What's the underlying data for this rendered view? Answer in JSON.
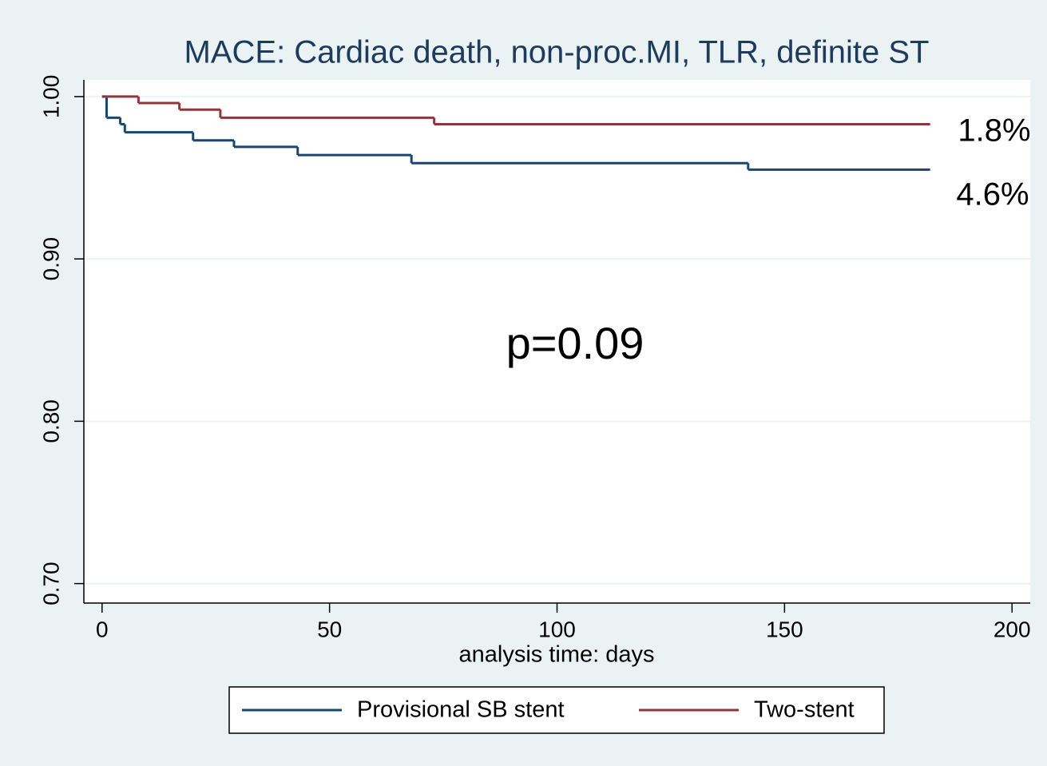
{
  "chart_data": {
    "type": "step",
    "title": "MACE: Cardiac death, non-proc.MI, TLR, definite ST",
    "xlabel": "analysis time: days",
    "xlim": [
      -4,
      204
    ],
    "xticks": [
      0,
      50,
      100,
      150,
      200
    ],
    "ylim": [
      0.688,
      1.0103
    ],
    "yticks": [
      {
        "value": 0.7,
        "label": "0.70"
      },
      {
        "value": 0.8,
        "label": "0.80"
      },
      {
        "value": 0.9,
        "label": "0.90"
      },
      {
        "value": 1,
        "label": "1.00"
      }
    ],
    "grid": true,
    "legend": "bottom",
    "series": [
      {
        "name": "Provisional SB stent",
        "color": "#1a476f",
        "x": [
          0,
          1,
          4,
          5,
          20,
          29,
          43,
          68,
          142,
          182
        ],
        "values": [
          1.0,
          0.987,
          0.983,
          0.978,
          0.973,
          0.969,
          0.964,
          0.959,
          0.955,
          0.955
        ]
      },
      {
        "name": "Two-stent",
        "color": "#90353b",
        "x": [
          0,
          8,
          17,
          26,
          73,
          182
        ],
        "values": [
          1.0,
          0.996,
          0.992,
          0.987,
          0.983,
          0.983
        ]
      }
    ],
    "annotations": [
      "1.8%",
      "4.6%",
      "p=0.09"
    ]
  }
}
